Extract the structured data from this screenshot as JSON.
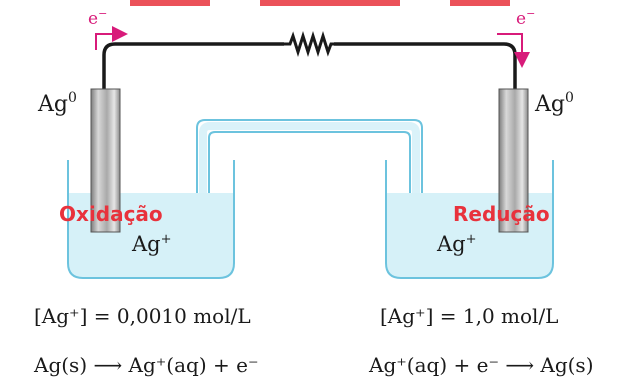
{
  "colors": {
    "wire": "#1a1a1a",
    "arrow": "#d81b7a",
    "label_red": "#e8323c",
    "solution": "#d6f1f8",
    "glass": "#6cc3de",
    "electrode": "#b9b9b9"
  },
  "electron": {
    "symbol": "e",
    "charge": "−"
  },
  "left": {
    "electrode_label": {
      "base": "Ag",
      "sup": "0"
    },
    "process": "Oxidação",
    "ion": {
      "base": "Ag",
      "sup": "+"
    },
    "concentration": "[Ag⁺] = 0,0010 mol/L",
    "reaction": "Ag(s) ⟶ Ag⁺(aq) + e⁻"
  },
  "right": {
    "electrode_label": {
      "base": "Ag",
      "sup": "0"
    },
    "process": "Redução",
    "ion": {
      "base": "Ag",
      "sup": "+"
    },
    "concentration": "[Ag⁺] = 1,0 mol/L",
    "reaction": "Ag⁺(aq) + e⁻ ⟶ Ag(s)"
  },
  "icons": {
    "resistor": "resistor-icon",
    "electron_arrow_left": "electron-flow-arrow-icon",
    "electron_arrow_right": "electron-flow-arrow-icon"
  }
}
